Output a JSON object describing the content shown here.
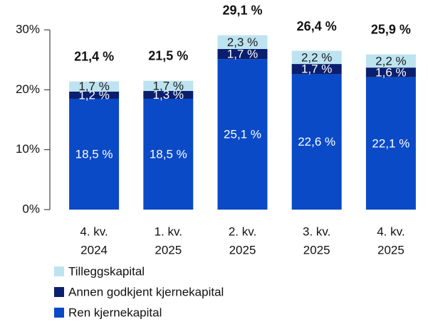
{
  "chart_data": {
    "type": "bar",
    "stacked": true,
    "categories": [
      [
        "4. kv.",
        "2024"
      ],
      [
        "1. kv.",
        "2025"
      ],
      [
        "2. kv.",
        "2025"
      ],
      [
        "3. kv.",
        "2025"
      ],
      [
        "4. kv.",
        "2025"
      ]
    ],
    "series": [
      {
        "name": "Ren kjernekapital",
        "color": "#0b4ac6",
        "label_color": "#ffffff",
        "values": [
          18.5,
          18.5,
          25.1,
          22.6,
          22.1
        ],
        "value_labels": [
          "18,5 %",
          "18,5 %",
          "25,1 %",
          "22,6 %",
          "22,1 %"
        ]
      },
      {
        "name": "Annen godkjent kjernekapital",
        "color": "#0a1f6e",
        "label_color": "#ffffff",
        "values": [
          1.2,
          1.3,
          1.7,
          1.7,
          1.6
        ],
        "value_labels": [
          "1,2 %",
          "1,3 %",
          "1,7 %",
          "1,7 %",
          "1,6 %"
        ]
      },
      {
        "name": "Tilleggskapital",
        "color": "#bde3f0",
        "label_color": "#1a1a1a",
        "values": [
          1.7,
          1.7,
          2.3,
          2.2,
          2.2
        ],
        "value_labels": [
          "1,7 %",
          "1,7 %",
          "2,3 %",
          "2,2 %",
          "2,2 %"
        ]
      }
    ],
    "totals": {
      "values": [
        21.4,
        21.5,
        29.1,
        26.4,
        25.9
      ],
      "value_labels": [
        "21,4 %",
        "21,5 %",
        "29,1 %",
        "26,4 %",
        "25,9 %"
      ]
    },
    "ylim": [
      0,
      30
    ],
    "yticks": [
      {
        "value": 0,
        "label": "0%"
      },
      {
        "value": 10,
        "label": "10%"
      },
      {
        "value": 20,
        "label": "20%"
      },
      {
        "value": 30,
        "label": "30%"
      }
    ]
  }
}
